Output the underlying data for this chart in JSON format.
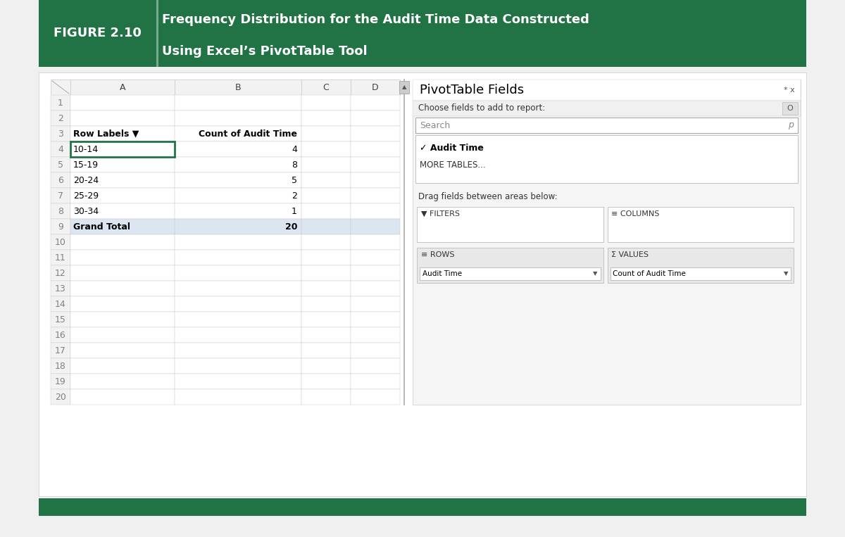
{
  "figure_label": "FIGURE 2.10",
  "figure_title_line1": "Frequency Distribution for the Audit Time Data Constructed",
  "figure_title_line2": "Using Excel’s PivotTable Tool",
  "header_bg_color": "#217346",
  "header_text_color": "#ffffff",
  "outer_bg_color": "#f0f0f0",
  "inner_bg_color": "#ffffff",
  "col_headers": [
    "A",
    "B",
    "C",
    "D"
  ],
  "row_numbers": [
    1,
    2,
    3,
    4,
    5,
    6,
    7,
    8,
    9,
    10,
    11,
    12,
    13,
    14,
    15,
    16,
    17,
    18,
    19,
    20
  ],
  "data_rows": [
    {
      "row": 3,
      "col_a": "Row Labels ▼",
      "col_b": "Count of Audit Time",
      "bold": true
    },
    {
      "row": 4,
      "col_a": "10-14",
      "col_b": "4",
      "highlight_a": true
    },
    {
      "row": 5,
      "col_a": "15-19",
      "col_b": "8"
    },
    {
      "row": 6,
      "col_a": "20-24",
      "col_b": "5"
    },
    {
      "row": 7,
      "col_a": "25-29",
      "col_b": "2"
    },
    {
      "row": 8,
      "col_a": "30-34",
      "col_b": "1"
    },
    {
      "row": 9,
      "col_a": "Grand Total",
      "col_b": "20",
      "bold": true
    }
  ],
  "pivot_title": "PivotTable Fields",
  "pivot_close": "* x",
  "pivot_subtitle": "Choose fields to add to report:",
  "pivot_search": "Search",
  "pivot_checked": "✓ Audit Time",
  "pivot_more": "MORE TABLES...",
  "pivot_drag_label": "Drag fields between areas below:",
  "pivot_filters_label": "▼ FILTERS",
  "pivot_columns_label": "≡ COLUMNS",
  "pivot_rows_label": "≡ ROWS",
  "pivot_values_label": "Σ VALUES",
  "pivot_rows_value": "Audit Time",
  "pivot_values_value": "Count of Audit Time",
  "cell_border_color": "#c8c8c8",
  "row_num_color": "#808080",
  "highlight_cell_border": "#217346",
  "grand_total_bg": "#dce6f1",
  "pivot_bg": "#f5f5f5",
  "pivot_section_bg": "#e8e8e8",
  "pivot_border_color": "#cccccc",
  "bottom_bar_color": "#217346",
  "row_header_bg": "#f2f2f2"
}
